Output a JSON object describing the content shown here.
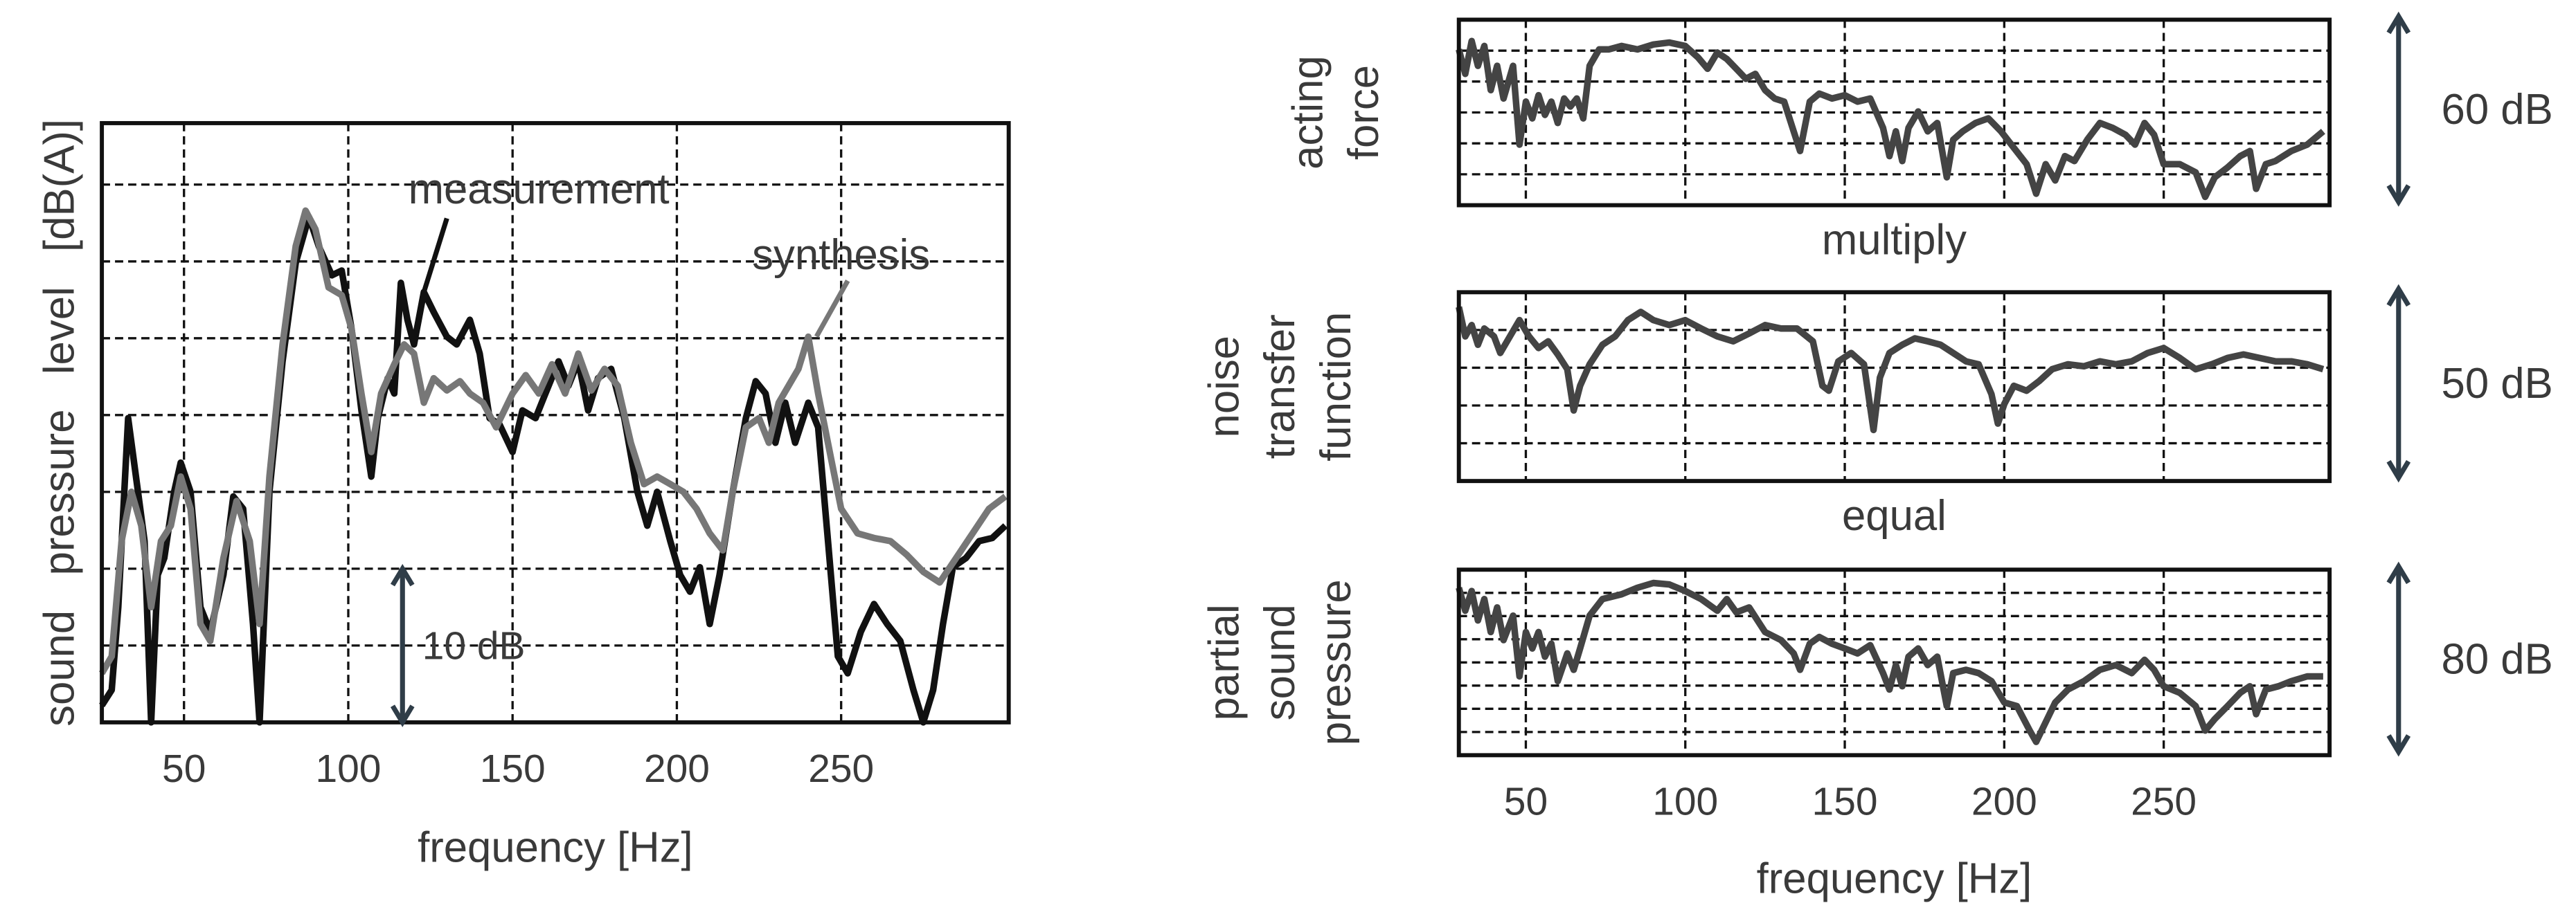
{
  "chart_data": [
    {
      "type": "line",
      "xlabel": "frequency [Hz]",
      "ylabel": "sound pressure level [dB(A)]",
      "xlim": [
        25,
        301
      ],
      "xticks": [
        50,
        100,
        150,
        200,
        250
      ],
      "xtick_labels": true,
      "ylim": [
        0,
        39
      ],
      "yticks": [
        5,
        10,
        15,
        20,
        25,
        30,
        35
      ],
      "grid": true,
      "scale_bar": {
        "label": "10 dB",
        "value": 10
      },
      "series": [
        {
          "name": "measurement",
          "color": "#111111",
          "x": [
            25,
            28,
            30,
            33,
            36,
            38,
            40,
            42,
            44,
            47,
            49,
            52,
            55,
            58,
            62,
            65,
            68,
            71,
            73,
            76,
            80,
            84,
            88,
            91,
            95,
            98,
            101,
            104,
            107,
            109,
            112,
            114,
            116,
            118,
            120,
            123,
            126,
            130,
            133,
            137,
            140,
            143,
            146,
            150,
            153,
            157,
            160,
            164,
            167,
            170,
            173,
            176,
            180,
            184,
            188,
            191,
            194,
            198,
            201,
            204,
            207,
            210,
            213,
            217,
            221,
            224,
            227,
            230,
            233,
            236,
            240,
            243,
            246,
            249,
            252,
            256,
            260,
            264,
            268,
            272,
            275,
            278,
            281,
            284,
            288,
            292,
            296,
            300
          ],
          "values": [
            1.1,
            2.1,
            7.5,
            19.8,
            15,
            11.8,
            0,
            9.6,
            10.7,
            15,
            16.9,
            15,
            7.5,
            5.9,
            9.6,
            14.7,
            13.9,
            6.4,
            0,
            15,
            23.5,
            29.9,
            32.9,
            31,
            29.1,
            29.4,
            25.6,
            20.3,
            16,
            19.8,
            22.4,
            21.4,
            28.6,
            26.2,
            24.6,
            28,
            26.7,
            25.1,
            24.6,
            26.2,
            24,
            19.8,
            19.4,
            17.6,
            20.3,
            19.8,
            21.4,
            23.5,
            21.9,
            23.5,
            20.3,
            22.4,
            23,
            19.8,
            15,
            12.8,
            15,
            11.8,
            9.6,
            8.5,
            10.1,
            6.4,
            9.6,
            15,
            19.8,
            22.2,
            21.4,
            18.2,
            20.8,
            18.2,
            20.8,
            19.2,
            11.8,
            4.3,
            3.2,
            5.9,
            7.7,
            6.4,
            5.3,
            2.1,
            0,
            2.1,
            6.4,
            10.1,
            10.7,
            11.8,
            12,
            12.8
          ]
        },
        {
          "name": "synthesis",
          "color": "#777777",
          "x": [
            25,
            28,
            31,
            34,
            37,
            40,
            43,
            46,
            49,
            52,
            55,
            58,
            62,
            66,
            70,
            73,
            76,
            80,
            84,
            87,
            90,
            94,
            98,
            101,
            104,
            107,
            110,
            114,
            117,
            120,
            123,
            126,
            130,
            134,
            137,
            141,
            145,
            150,
            154,
            158,
            162,
            166,
            170,
            174,
            178,
            182,
            186,
            190,
            194,
            198,
            202,
            206,
            210,
            214,
            217,
            221,
            225,
            228,
            231,
            234,
            237,
            240,
            243,
            247,
            250,
            255,
            260,
            265,
            270,
            275,
            280,
            285,
            290,
            295,
            300
          ],
          "values": [
            3.2,
            4.3,
            11.8,
            15,
            12.8,
            7.5,
            11.8,
            12.8,
            16,
            13.9,
            6.4,
            5.3,
            10.7,
            14.4,
            11.8,
            6.4,
            16,
            24.6,
            31,
            33.3,
            32.1,
            28.3,
            27.8,
            25.6,
            21.4,
            17.6,
            21.4,
            23.3,
            24.6,
            24,
            20.8,
            22.4,
            21.6,
            22.2,
            21.4,
            20.8,
            19.2,
            21.4,
            22.6,
            21.4,
            23.3,
            21.4,
            24,
            21.6,
            23,
            21.9,
            18.2,
            15.5,
            16,
            15.5,
            15,
            13.9,
            12.3,
            11.2,
            15,
            19.2,
            19.8,
            18.2,
            20.8,
            21.9,
            23,
            25.1,
            21.4,
            17.1,
            13.9,
            12.3,
            12,
            11.8,
            10.9,
            9.8,
            9.1,
            10.7,
            12.3,
            13.9,
            14.7
          ]
        }
      ]
    },
    {
      "type": "line",
      "ylabel": [
        "acting",
        "force"
      ],
      "caption": "multiply",
      "xlim": [
        29,
        302
      ],
      "xticks": [
        50,
        100,
        150,
        200,
        250
      ],
      "xtick_labels": false,
      "ylim": [
        0,
        60
      ],
      "yticks": [
        10,
        20,
        30,
        40,
        50
      ],
      "grid": true,
      "scale_bar": {
        "label": "60 dB",
        "value": 60
      },
      "series": [
        {
          "color": "#444444",
          "x": [
            29,
            31,
            33,
            35,
            37,
            39,
            41,
            43,
            46,
            48,
            50,
            52,
            54,
            56,
            58,
            60,
            62,
            64,
            66,
            68,
            70,
            73,
            76,
            80,
            85,
            90,
            95,
            100,
            104,
            107,
            110,
            113,
            116,
            119,
            122,
            125,
            128,
            131,
            134,
            136,
            139,
            142,
            146,
            150,
            154,
            158,
            162,
            164,
            166,
            168,
            170,
            173,
            176,
            179,
            182,
            184,
            187,
            191,
            195,
            199,
            203,
            207,
            210,
            213,
            216,
            219,
            222,
            226,
            230,
            234,
            238,
            241,
            244,
            247,
            250,
            255,
            260,
            263,
            266,
            270,
            274,
            277,
            279,
            282,
            285,
            290,
            295,
            300
          ],
          "values": [
            50.4,
            42.5,
            53.1,
            45.1,
            51.5,
            37.2,
            45.1,
            34.5,
            45.1,
            19.6,
            33.5,
            28.1,
            35.6,
            29.2,
            33.5,
            26.6,
            34.5,
            31.9,
            34.5,
            28.1,
            45.1,
            50.4,
            50.4,
            51.5,
            50.4,
            52,
            52.6,
            51.5,
            47.8,
            44.1,
            49.4,
            47.3,
            44.1,
            40.9,
            42.5,
            37.2,
            34.5,
            33.5,
            23.9,
            17.5,
            33.5,
            36.1,
            34.5,
            35.6,
            33.5,
            34.5,
            25,
            15.9,
            23.9,
            14.3,
            25,
            30.3,
            23.9,
            26.6,
            9,
            21.2,
            23.9,
            26.6,
            28.1,
            23.9,
            18.6,
            13.3,
            3.7,
            13.3,
            8,
            15.9,
            14.3,
            21.2,
            26.6,
            25,
            22.8,
            19.6,
            26.6,
            22.8,
            13.3,
            13.3,
            10.6,
            2.7,
            9,
            12.2,
            15.9,
            17.5,
            5.3,
            13.3,
            14.3,
            17.5,
            19.6,
            23.9
          ]
        }
      ]
    },
    {
      "type": "line",
      "ylabel": [
        "noise",
        "transfer",
        "function"
      ],
      "caption": "equal",
      "xlim": [
        29,
        302
      ],
      "xticks": [
        50,
        100,
        150,
        200,
        250
      ],
      "xtick_labels": false,
      "ylim": [
        0,
        50
      ],
      "yticks": [
        10,
        20,
        30,
        40
      ],
      "grid": true,
      "scale_bar": {
        "label": "50 dB",
        "value": 50
      },
      "series": [
        {
          "color": "#444444",
          "x": [
            29,
            31,
            33,
            35,
            37,
            40,
            42,
            45,
            48,
            51,
            54,
            57,
            60,
            63,
            65,
            67,
            70,
            74,
            78,
            82,
            86,
            90,
            95,
            100,
            105,
            110,
            115,
            120,
            125,
            130,
            135,
            140,
            143,
            145,
            148,
            152,
            156,
            159,
            161,
            164,
            168,
            172,
            176,
            180,
            184,
            188,
            192,
            196,
            198,
            200,
            203,
            207,
            211,
            215,
            220,
            225,
            230,
            235,
            240,
            245,
            250,
            255,
            260,
            265,
            270,
            275,
            280,
            285,
            290,
            295,
            300
          ],
          "values": [
            46.1,
            38.3,
            41.3,
            36.1,
            40.4,
            38.3,
            33.9,
            38.3,
            42.6,
            38.3,
            35.2,
            37,
            33.5,
            29.6,
            18.7,
            25.2,
            30.9,
            36.1,
            38.3,
            42.6,
            44.8,
            42.6,
            41.3,
            42.6,
            40.4,
            38.3,
            37,
            39.1,
            41.3,
            40.4,
            40.4,
            37,
            25.2,
            23.9,
            31.7,
            33.9,
            30.9,
            13.5,
            27.4,
            33.9,
            36.1,
            37.8,
            37,
            36.1,
            33.9,
            31.7,
            30.9,
            23,
            15.2,
            20.4,
            25.2,
            23.9,
            26.5,
            29.6,
            30.9,
            30.4,
            31.7,
            30.9,
            31.7,
            33.9,
            35.2,
            32.6,
            29.6,
            30.9,
            32.6,
            33.5,
            32.6,
            31.7,
            31.7,
            30.9,
            29.6
          ]
        }
      ]
    },
    {
      "type": "line",
      "ylabel": [
        "partial",
        "sound",
        "pressure"
      ],
      "xlabel": "frequency [Hz]",
      "xlim": [
        29,
        302
      ],
      "xticks": [
        50,
        100,
        150,
        200,
        250
      ],
      "xtick_labels": true,
      "ylim": [
        0,
        80
      ],
      "yticks": [
        10,
        20,
        30,
        40,
        50,
        60,
        70
      ],
      "grid": true,
      "scale_bar": {
        "label": "80 dB",
        "value": 80
      },
      "series": [
        {
          "color": "#444444",
          "x": [
            29,
            31,
            33,
            35,
            37,
            39,
            41,
            43,
            46,
            48,
            50,
            52,
            54,
            56,
            58,
            60,
            63,
            65,
            67,
            70,
            74,
            80,
            85,
            90,
            95,
            100,
            105,
            110,
            113,
            116,
            120,
            125,
            130,
            134,
            136,
            139,
            142,
            146,
            150,
            154,
            158,
            162,
            164,
            166,
            168,
            170,
            173,
            176,
            179,
            182,
            184,
            188,
            192,
            196,
            200,
            204,
            208,
            210,
            213,
            216,
            220,
            225,
            230,
            235,
            240,
            244,
            247,
            250,
            255,
            260,
            263,
            266,
            270,
            274,
            277,
            279,
            282,
            286,
            290,
            295,
            300
          ],
          "values": [
            72.2,
            62.3,
            70.8,
            58.1,
            67.3,
            53.1,
            63.7,
            49.6,
            60.2,
            34,
            53.1,
            46,
            53.1,
            42.5,
            48.1,
            31.9,
            43.9,
            36.8,
            46,
            60.2,
            67.3,
            69.4,
            72.2,
            74.3,
            73.6,
            70.8,
            67.3,
            62.3,
            67.3,
            61.6,
            63.7,
            53.1,
            49.6,
            43.9,
            36.8,
            48.1,
            51,
            48.1,
            46,
            43.9,
            47.4,
            35.4,
            28.3,
            38.9,
            29.7,
            42.5,
            46,
            38.9,
            42.5,
            21.2,
            35.4,
            36.8,
            35.4,
            31.9,
            22.7,
            21.2,
            10.6,
            5.7,
            14.2,
            22.7,
            28.3,
            31.9,
            36.8,
            38.9,
            35.4,
            41.1,
            36.8,
            29.7,
            26.9,
            21.2,
            10.6,
            15.6,
            21.2,
            26.9,
            29.7,
            17.7,
            28.3,
            29.7,
            31.9,
            34,
            34
          ]
        }
      ]
    }
  ]
}
